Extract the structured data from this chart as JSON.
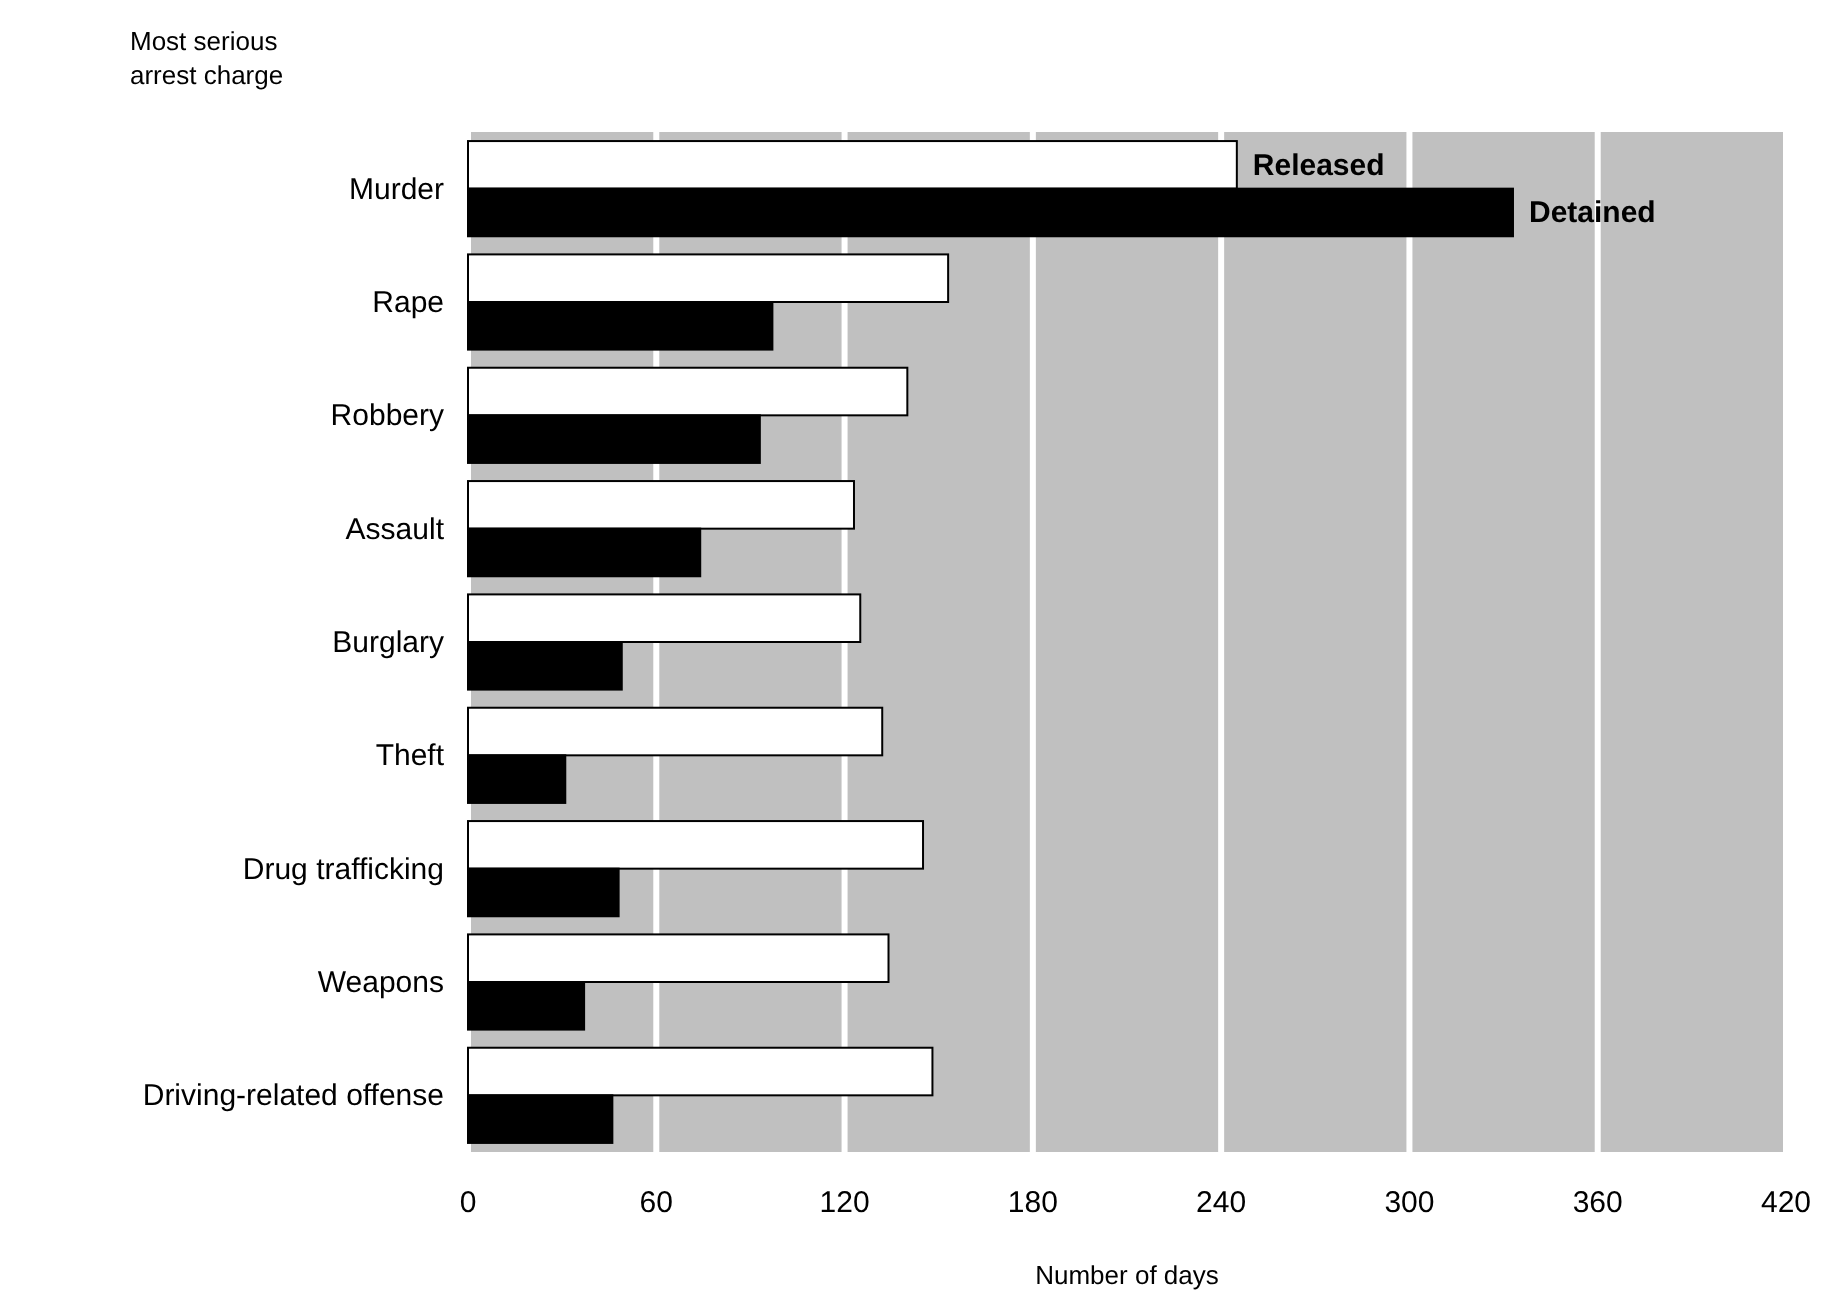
{
  "chart_data": {
    "type": "bar",
    "orientation": "horizontal",
    "ylabel": "Most serious arrest charge",
    "xlabel": "Number of days",
    "categories": [
      "Murder",
      "Rape",
      "Robbery",
      "Assault",
      "Burglary",
      "Theft",
      "Drug trafficking",
      "Weapons",
      "Driving-related offense"
    ],
    "series": [
      {
        "name": "Released",
        "color": "#ffffff",
        "values": [
          245,
          153,
          140,
          123,
          125,
          132,
          145,
          134,
          148
        ]
      },
      {
        "name": "Detained",
        "color": "#000000",
        "values": [
          333,
          97,
          93,
          74,
          49,
          31,
          48,
          37,
          46
        ]
      }
    ],
    "xlim": [
      0,
      420
    ],
    "xticks": [
      0,
      60,
      120,
      180,
      240,
      300,
      360,
      420
    ],
    "grid": "x",
    "legend": false
  }
}
